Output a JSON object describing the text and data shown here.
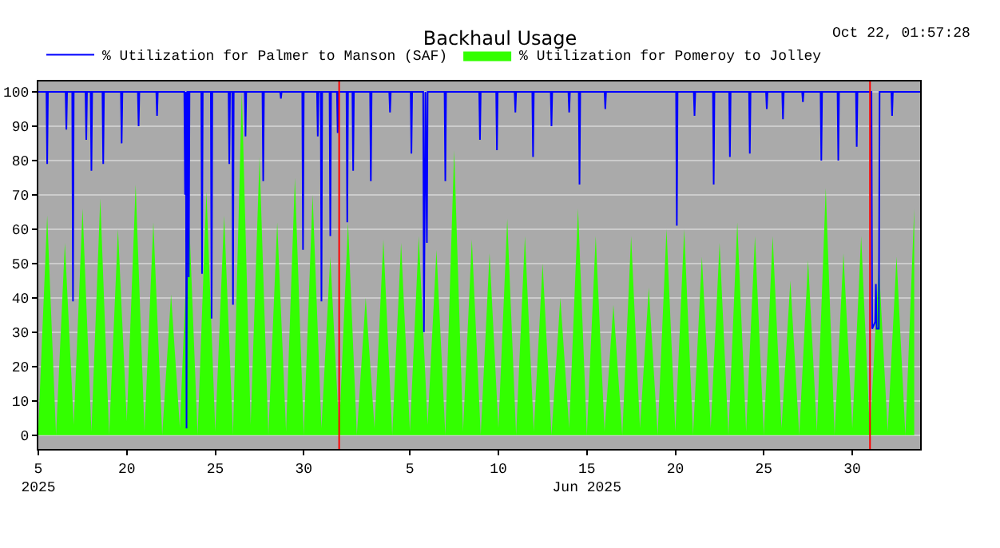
{
  "chart_data": {
    "type": "line",
    "title": "Backhaul Usage",
    "annotations": [
      "Oct 22, 01:57:28"
    ],
    "legend": "top left",
    "grid": "y",
    "marker": "none",
    "line_style": "solid",
    "xlim": [
      "2025-05-15T00:00",
      "2025-07-03T20:00"
    ],
    "xticks": [
      {
        "value": "2025-05-15",
        "label": "5\n2025"
      },
      {
        "value": "2025-05-20",
        "label": "20"
      },
      {
        "value": "2025-05-25",
        "label": "25"
      },
      {
        "value": "2025-05-30",
        "label": "30"
      },
      {
        "value": "2025-06-05",
        "label": "5"
      },
      {
        "value": "2025-06-10",
        "label": "10"
      },
      {
        "value": "2025-06-15",
        "label": "15\nJun 2025"
      },
      {
        "value": "2025-06-20",
        "label": "20"
      },
      {
        "value": "2025-06-25",
        "label": "25"
      },
      {
        "value": "2025-06-30",
        "label": "30"
      }
    ],
    "ylim": [
      -4,
      103
    ],
    "yticks": [
      0,
      10,
      20,
      30,
      40,
      50,
      60,
      70,
      80,
      90,
      100
    ],
    "ref_lines": [
      {
        "axis": "x",
        "value": "2025-06-01",
        "color": "#ff0000"
      },
      {
        "axis": "x",
        "value": "2025-07-01",
        "color": "#ff0000"
      }
    ],
    "series": [
      {
        "name": "% Utilization for Palmer to Manson (SAF)",
        "color": "#0000ff",
        "x": [
          "2025-05-15T00:00",
          "2025-05-15T11:00",
          "2025-05-15T12:00",
          "2025-05-15T13:00",
          "2025-05-16T13:00",
          "2025-05-16T14:00",
          "2025-05-16T15:00",
          "2025-05-16T22:00",
          "2025-05-16T23:00",
          "2025-05-17T00:00",
          "2025-05-17T16:00",
          "2025-05-17T17:00",
          "2025-05-17T18:00",
          "2025-05-17T23:00",
          "2025-05-18T00:00",
          "2025-05-18T01:00",
          "2025-05-18T15:00",
          "2025-05-18T16:00",
          "2025-05-18T17:00",
          "2025-05-19T16:00",
          "2025-05-19T17:00",
          "2025-05-19T18:00",
          "2025-05-20T15:00",
          "2025-05-20T16:00",
          "2025-05-20T17:00",
          "2025-05-21T16:00",
          "2025-05-21T17:00",
          "2025-05-21T18:00",
          "2025-05-23T06:00",
          "2025-05-23T07:00",
          "2025-05-23T08:00",
          "2025-05-23T09:00",
          "2025-05-23T10:00",
          "2025-05-23T11:00",
          "2025-05-23T12:00",
          "2025-05-23T13:00",
          "2025-05-24T05:00",
          "2025-05-24T06:00",
          "2025-05-24T07:00",
          "2025-05-24T18:00",
          "2025-05-24T19:00",
          "2025-05-24T20:00",
          "2025-05-25T18:00",
          "2025-05-25T19:00",
          "2025-05-25T20:00",
          "2025-05-25T23:00",
          "2025-05-26T00:00",
          "2025-05-26T01:00",
          "2025-05-26T16:00",
          "2025-05-26T17:00",
          "2025-05-26T18:00",
          "2025-05-27T16:00",
          "2025-05-27T17:00",
          "2025-05-27T18:00",
          "2025-05-28T16:00",
          "2025-05-28T17:00",
          "2025-05-28T18:00",
          "2025-05-29T22:00",
          "2025-05-29T23:00",
          "2025-05-30T00:00",
          "2025-05-30T18:00",
          "2025-05-30T19:00",
          "2025-05-30T20:00",
          "2025-05-30T23:00",
          "2025-05-31T00:00",
          "2025-05-31T01:00",
          "2025-05-31T11:00",
          "2025-05-31T12:00",
          "2025-05-31T13:00",
          "2025-05-31T21:00",
          "2025-05-31T22:00",
          "2025-05-31T23:00",
          "2025-06-01T10:00",
          "2025-06-01T11:00",
          "2025-06-01T12:00",
          "2025-06-01T18:00",
          "2025-06-01T19:00",
          "2025-06-01T20:00",
          "2025-06-02T18:00",
          "2025-06-02T19:00",
          "2025-06-02T20:00",
          "2025-06-03T20:00",
          "2025-06-03T21:00",
          "2025-06-03T22:00",
          "2025-06-05T01:00",
          "2025-06-05T02:00",
          "2025-06-05T03:00",
          "2025-06-05T18:00",
          "2025-06-05T19:00",
          "2025-06-05T21:00",
          "2025-06-05T23:00",
          "2025-06-06T00:00",
          "2025-06-06T23:00",
          "2025-06-07T00:00",
          "2025-06-07T01:00",
          "2025-06-08T22:00",
          "2025-06-08T23:00",
          "2025-06-09T00:00",
          "2025-06-09T21:00",
          "2025-06-09T22:00",
          "2025-06-09T23:00",
          "2025-06-10T22:00",
          "2025-06-10T23:00",
          "2025-06-11T00:00",
          "2025-06-11T22:00",
          "2025-06-11T23:00",
          "2025-06-12T00:00",
          "2025-06-12T23:00",
          "2025-06-13T00:00",
          "2025-06-13T01:00",
          "2025-06-13T23:00",
          "2025-06-14T00:00",
          "2025-06-14T01:00",
          "2025-06-14T13:00",
          "2025-06-14T14:00",
          "2025-06-14T15:00",
          "2025-06-16T00:00",
          "2025-06-16T01:00",
          "2025-06-16T02:00",
          "2025-06-20T01:00",
          "2025-06-20T02:00",
          "2025-06-20T03:00",
          "2025-06-21T01:00",
          "2025-06-21T02:00",
          "2025-06-21T03:00",
          "2025-06-22T03:00",
          "2025-06-22T04:00",
          "2025-06-22T05:00",
          "2025-06-23T01:00",
          "2025-06-23T02:00",
          "2025-06-23T03:00",
          "2025-06-24T04:00",
          "2025-06-24T05:00",
          "2025-06-24T06:00",
          "2025-06-25T03:00",
          "2025-06-25T04:00",
          "2025-06-25T05:00",
          "2025-06-26T01:00",
          "2025-06-26T02:00",
          "2025-06-26T03:00",
          "2025-06-27T04:00",
          "2025-06-27T05:00",
          "2025-06-27T06:00",
          "2025-06-28T05:00",
          "2025-06-28T06:00",
          "2025-06-28T07:00",
          "2025-06-29T04:00",
          "2025-06-29T05:00",
          "2025-06-29T06:00",
          "2025-06-30T05:00",
          "2025-06-30T06:00",
          "2025-06-30T07:00",
          "2025-07-01T02:00",
          "2025-07-01T03:00",
          "2025-07-01T07:00",
          "2025-07-01T08:00",
          "2025-07-01T09:00",
          "2025-07-01T12:00",
          "2025-07-01T13:00",
          "2025-07-02T05:00",
          "2025-07-02T06:00",
          "2025-07-02T07:00",
          "2025-07-03T20:00"
        ],
        "values": [
          100,
          100,
          79,
          100,
          100,
          89,
          100,
          100,
          39,
          100,
          100,
          86,
          100,
          100,
          77,
          100,
          100,
          79,
          100,
          100,
          85,
          100,
          100,
          90,
          100,
          100,
          93,
          100,
          100,
          70,
          100,
          2,
          100,
          100,
          46,
          100,
          100,
          47,
          100,
          100,
          34,
          100,
          100,
          79,
          100,
          100,
          38,
          100,
          100,
          87,
          100,
          100,
          74,
          100,
          100,
          98,
          100,
          100,
          54,
          100,
          100,
          87,
          100,
          100,
          39,
          100,
          100,
          58,
          100,
          100,
          88,
          100,
          100,
          62,
          100,
          100,
          77,
          100,
          100,
          74,
          100,
          100,
          94,
          100,
          100,
          82,
          100,
          100,
          30,
          100,
          56,
          100,
          100,
          74,
          100,
          100,
          86,
          100,
          100,
          83,
          100,
          100,
          94,
          100,
          100,
          81,
          100,
          100,
          90,
          100,
          100,
          94,
          100,
          100,
          73,
          100,
          100,
          95,
          100,
          100,
          61,
          100,
          100,
          93,
          100,
          100,
          73,
          100,
          100,
          81,
          100,
          100,
          82,
          100,
          100,
          95,
          100,
          100,
          92,
          100,
          100,
          97,
          100,
          100,
          80,
          100,
          100,
          80,
          100,
          100,
          84,
          100,
          100,
          31,
          33,
          44,
          31,
          31,
          100,
          100,
          93,
          100,
          100
        ]
      },
      {
        "name": "% Utilization for Pomeroy to Jolley",
        "type": "area",
        "color": "#33ff00",
        "x": [
          "2025-05-15T00:00",
          "2025-05-15T12:00",
          "2025-05-16T00:00",
          "2025-05-16T12:00",
          "2025-05-17T00:00",
          "2025-05-17T12:00",
          "2025-05-18T00:00",
          "2025-05-18T12:00",
          "2025-05-19T00:00",
          "2025-05-19T12:00",
          "2025-05-20T00:00",
          "2025-05-20T12:00",
          "2025-05-21T00:00",
          "2025-05-21T12:00",
          "2025-05-22T00:00",
          "2025-05-22T12:00",
          "2025-05-23T00:00",
          "2025-05-23T12:00",
          "2025-05-24T00:00",
          "2025-05-24T12:00",
          "2025-05-25T00:00",
          "2025-05-25T12:00",
          "2025-05-26T00:00",
          "2025-05-26T12:00",
          "2025-05-27T00:00",
          "2025-05-27T12:00",
          "2025-05-28T00:00",
          "2025-05-28T12:00",
          "2025-05-29T00:00",
          "2025-05-29T12:00",
          "2025-05-30T00:00",
          "2025-05-30T12:00",
          "2025-05-31T00:00",
          "2025-05-31T12:00",
          "2025-06-01T00:00",
          "2025-06-01T12:00",
          "2025-06-02T00:00",
          "2025-06-02T12:00",
          "2025-06-03T00:00",
          "2025-06-03T12:00",
          "2025-06-04T00:00",
          "2025-06-04T12:00",
          "2025-06-05T00:00",
          "2025-06-05T12:00",
          "2025-06-06T00:00",
          "2025-06-06T12:00",
          "2025-06-07T00:00",
          "2025-06-07T12:00",
          "2025-06-08T00:00",
          "2025-06-08T12:00",
          "2025-06-09T00:00",
          "2025-06-09T12:00",
          "2025-06-10T00:00",
          "2025-06-10T12:00",
          "2025-06-11T00:00",
          "2025-06-11T12:00",
          "2025-06-12T00:00",
          "2025-06-12T12:00",
          "2025-06-13T00:00",
          "2025-06-13T12:00",
          "2025-06-14T00:00",
          "2025-06-14T12:00",
          "2025-06-15T00:00",
          "2025-06-15T12:00",
          "2025-06-16T00:00",
          "2025-06-16T12:00",
          "2025-06-17T00:00",
          "2025-06-17T12:00",
          "2025-06-18T00:00",
          "2025-06-18T12:00",
          "2025-06-19T00:00",
          "2025-06-19T12:00",
          "2025-06-20T00:00",
          "2025-06-20T12:00",
          "2025-06-21T00:00",
          "2025-06-21T12:00",
          "2025-06-22T00:00",
          "2025-06-22T12:00",
          "2025-06-23T00:00",
          "2025-06-23T12:00",
          "2025-06-24T00:00",
          "2025-06-24T12:00",
          "2025-06-25T00:00",
          "2025-06-25T12:00",
          "2025-06-26T00:00",
          "2025-06-26T12:00",
          "2025-06-27T00:00",
          "2025-06-27T12:00",
          "2025-06-28T00:00",
          "2025-06-28T12:00",
          "2025-06-29T00:00",
          "2025-06-29T12:00",
          "2025-06-30T00:00",
          "2025-06-30T12:00",
          "2025-07-01T00:00",
          "2025-07-01T12:00",
          "2025-07-02T00:00",
          "2025-07-02T12:00",
          "2025-07-03T00:00",
          "2025-07-03T12:00"
        ],
        "values": [
          2,
          64,
          0,
          56,
          3,
          66,
          1,
          69,
          0,
          60,
          4,
          73,
          1,
          62,
          0,
          41,
          2,
          66,
          0,
          71,
          1,
          64,
          0,
          100,
          3,
          81,
          0,
          62,
          1,
          75,
          0,
          70,
          2,
          52,
          1,
          62,
          0,
          40,
          2,
          57,
          0,
          56,
          1,
          58,
          3,
          54,
          0,
          83,
          1,
          57,
          0,
          53,
          2,
          63,
          0,
          58,
          1,
          50,
          0,
          40,
          2,
          66,
          0,
          58,
          1,
          38,
          0,
          58,
          2,
          43,
          0,
          60,
          1,
          60,
          0,
          52,
          2,
          56,
          0,
          62,
          1,
          58,
          0,
          58,
          2,
          45,
          0,
          51,
          1,
          72,
          0,
          53,
          2,
          58,
          0,
          50,
          1,
          52,
          0,
          66
        ]
      }
    ]
  }
}
